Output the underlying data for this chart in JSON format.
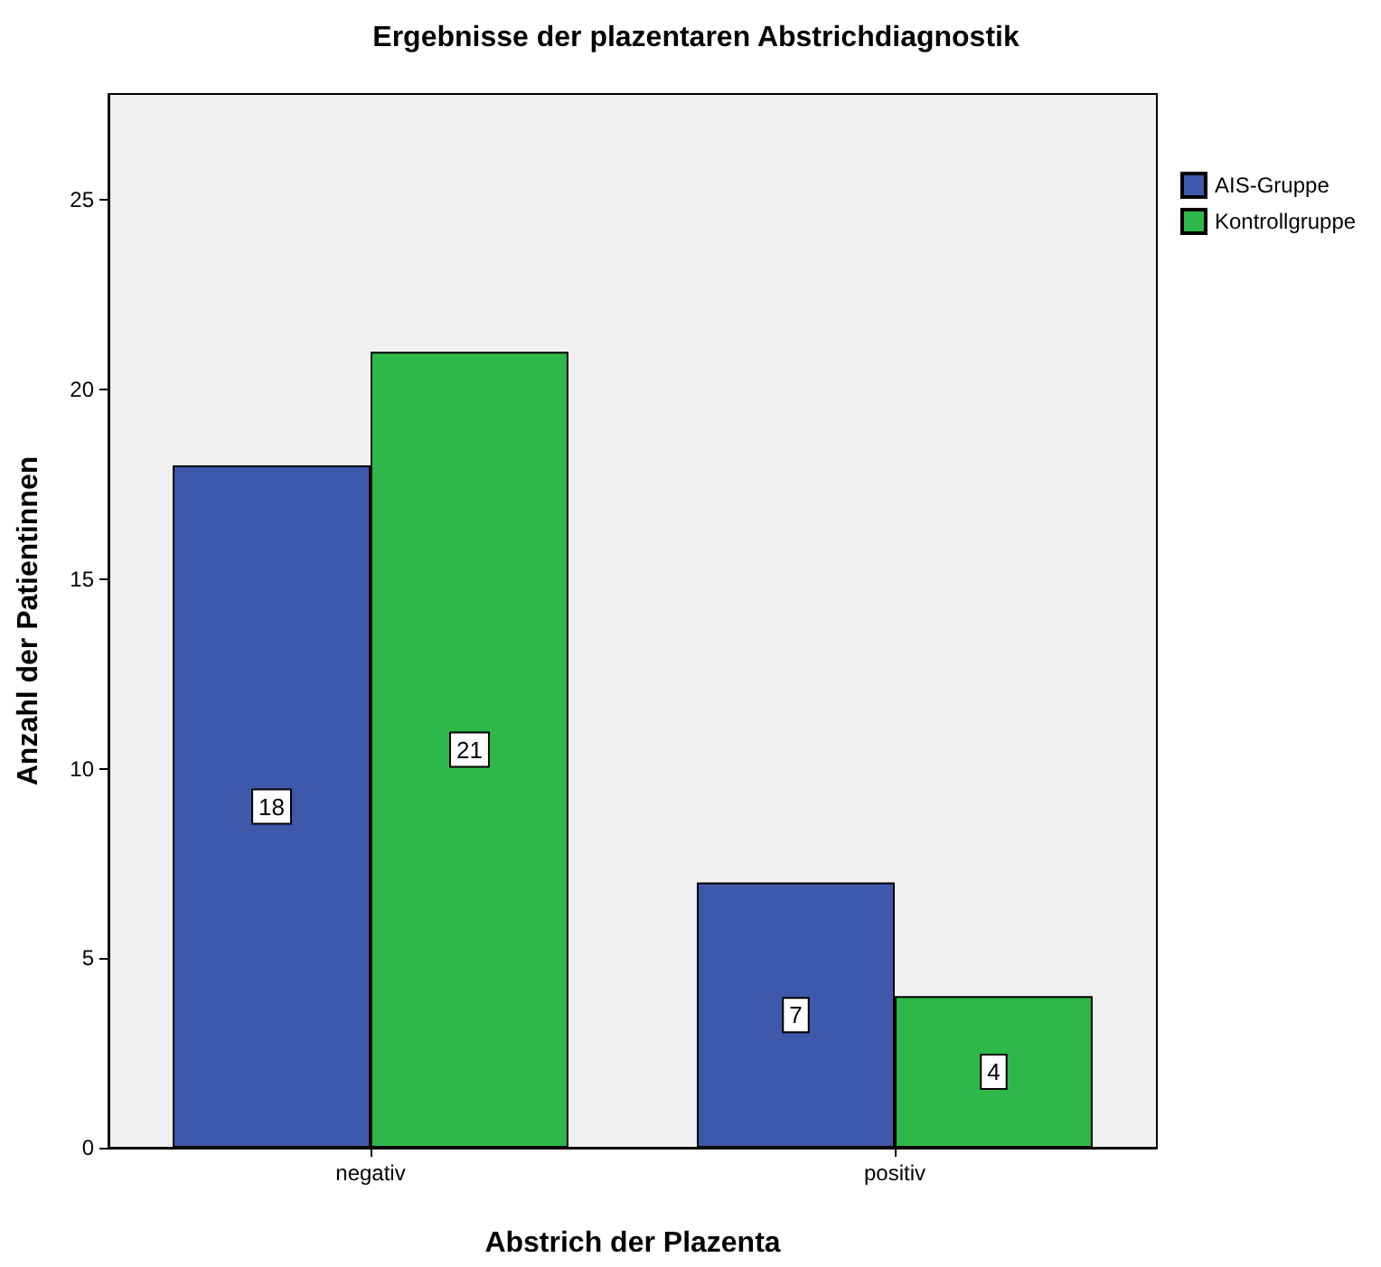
{
  "chart_data": {
    "type": "bar",
    "title": "Ergebnisse der plazentaren Abstrichdiagnostik",
    "xlabel": "Abstrich der Plazenta",
    "ylabel": "Anzahl der Patientinnen",
    "categories": [
      "negativ",
      "positiv"
    ],
    "series": [
      {
        "name": "AIS-Gruppe",
        "color": "#3e58ac",
        "values": [
          18,
          7
        ]
      },
      {
        "name": "Kontrollgruppe",
        "color": "#2eb84a",
        "values": [
          21,
          4
        ]
      }
    ],
    "ylim": [
      0,
      27.8
    ],
    "yticks": [
      0,
      5,
      10,
      15,
      20,
      25
    ],
    "data_labels": true,
    "grid": false,
    "legend": "top right"
  }
}
